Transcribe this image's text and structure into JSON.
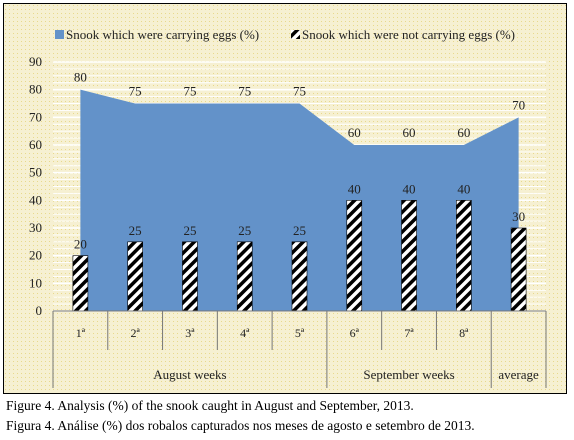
{
  "chart_data": {
    "type": "bar",
    "categories": [
      "1ª",
      "2ª",
      "3ª",
      "4ª",
      "5ª",
      "6ª",
      "7ª",
      "8ª",
      "average"
    ],
    "groups": [
      {
        "label": "August weeks",
        "span": [
          0,
          4
        ]
      },
      {
        "label": "September weeks",
        "span": [
          5,
          7
        ]
      },
      {
        "label": "average",
        "span": [
          8,
          8
        ]
      }
    ],
    "series": [
      {
        "name": "Snook which were carrying eggs  (%)",
        "kind": "area",
        "color": "#6392c9",
        "values": [
          80,
          75,
          75,
          75,
          75,
          60,
          60,
          60,
          70
        ]
      },
      {
        "name": "Snook which were not carrying eggs  (%)",
        "kind": "bar",
        "pattern": "black-white-diagonal-stripes",
        "values": [
          20,
          25,
          25,
          25,
          25,
          40,
          40,
          40,
          30
        ]
      }
    ],
    "yticks": [
      0,
      10,
      20,
      30,
      40,
      50,
      60,
      70,
      80,
      90
    ],
    "ylim": [
      0,
      90
    ],
    "grid": true,
    "legend": "top",
    "data_labels": true
  },
  "captions": {
    "en": "Figure 4. Analysis (%) of the snook caught in August and September, 2013.",
    "pt": "Figura 4. Análise (%) dos robalos capturados nos meses de agosto e setembro de 2013."
  }
}
